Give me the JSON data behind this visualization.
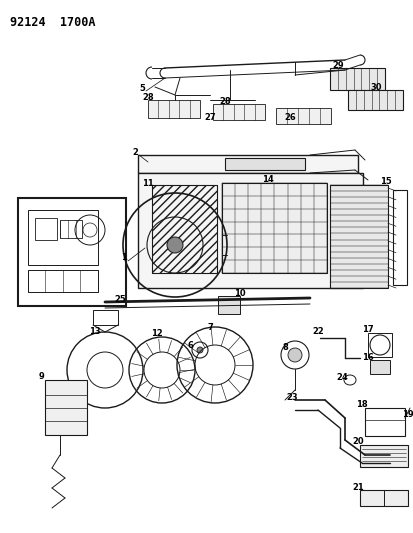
{
  "title": "92124  1700A",
  "bg_color": "#ffffff",
  "fig_width": 4.14,
  "fig_height": 5.33,
  "dpi": 100,
  "line_color": "#1a1a1a",
  "text_color": "#000000",
  "label_fontsize": 6.0,
  "title_fontsize": 8.5
}
